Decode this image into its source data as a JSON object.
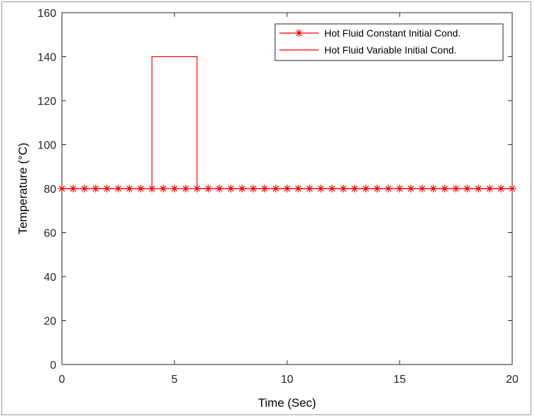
{
  "chart_data": {
    "type": "line",
    "xlabel": "Time (Sec)",
    "ylabel": "Temperature  (°C)",
    "xlim": [
      0,
      20
    ],
    "ylim": [
      0,
      160
    ],
    "xticks": [
      0,
      5,
      10,
      15,
      20
    ],
    "yticks": [
      0,
      20,
      40,
      60,
      80,
      100,
      120,
      140,
      160
    ],
    "grid": false,
    "legend_position": "top-right",
    "series": [
      {
        "name": "Hot Fluid Constant Initial Cond.",
        "color": "#ff0000",
        "marker": "asterisk",
        "x": [
          0,
          0.5,
          1,
          1.5,
          2,
          2.5,
          3,
          3.5,
          4,
          4.5,
          5,
          5.5,
          6,
          6.5,
          7,
          7.5,
          8,
          8.5,
          9,
          9.5,
          10,
          10.5,
          11,
          11.5,
          12,
          12.5,
          13,
          13.5,
          14,
          14.5,
          15,
          15.5,
          16,
          16.5,
          17,
          17.5,
          18,
          18.5,
          19,
          19.5,
          20
        ],
        "y": [
          80,
          80,
          80,
          80,
          80,
          80,
          80,
          80,
          80,
          80,
          80,
          80,
          80,
          80,
          80,
          80,
          80,
          80,
          80,
          80,
          80,
          80,
          80,
          80,
          80,
          80,
          80,
          80,
          80,
          80,
          80,
          80,
          80,
          80,
          80,
          80,
          80,
          80,
          80,
          80,
          80
        ]
      },
      {
        "name": "Hot Fluid Variable Initial Cond.",
        "color": "#ff0000",
        "marker": "none",
        "x": [
          0,
          4,
          4,
          6,
          6,
          20
        ],
        "y": [
          80,
          80,
          140,
          140,
          80,
          80
        ]
      }
    ]
  }
}
